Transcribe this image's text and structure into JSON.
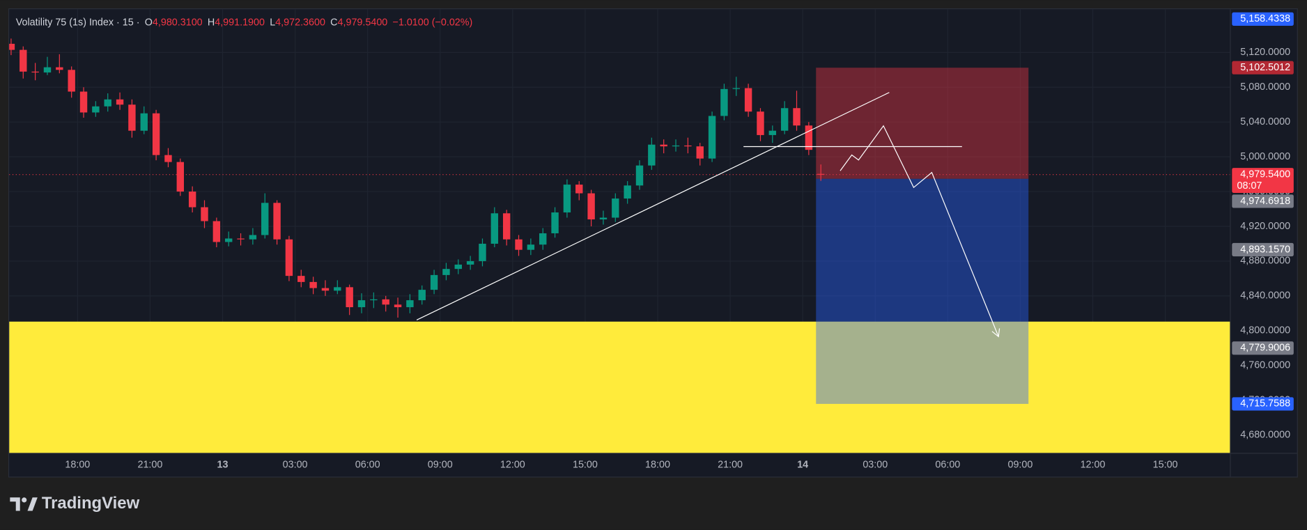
{
  "chart_data": {
    "type": "candlestick",
    "header": {
      "symbol": "Volatility 75 (1s) Index · 15 ·",
      "open_key": "O",
      "open": "4,980.3100",
      "high_key": "H",
      "high": "4,991.1900",
      "low_key": "L",
      "low": "4,972.3600",
      "close_key": "C",
      "close": "4,979.5400",
      "change": "−1.0100 (−0.02%)"
    },
    "up_color": "#089981",
    "down_color": "#f23645",
    "x": [
      15.25,
      15.75,
      16.25,
      16.75,
      17.25,
      17.75,
      18.25,
      18.75,
      19.25,
      19.75,
      20.25,
      20.75,
      21.25,
      21.75,
      22.25,
      22.75,
      23.25,
      23.75,
      24.25,
      24.75,
      25.25,
      25.75,
      26.25,
      26.75,
      27.25,
      27.75,
      28.25,
      28.75,
      29.25,
      29.75,
      30.25,
      30.75,
      31.25,
      31.75,
      32.25,
      32.75,
      33.25,
      33.75,
      34.25,
      34.75,
      35.25,
      35.75,
      36.25,
      36.75,
      37.25,
      37.75,
      38.25,
      38.75,
      39.25,
      39.75,
      40.25,
      40.75,
      41.25,
      41.75,
      42.25,
      42.75,
      43.25,
      43.75,
      44.25,
      44.75,
      45.25,
      45.75,
      46.25,
      46.75,
      47.25,
      47.75,
      48.25,
      48.75
    ],
    "candles": [
      [
        5130,
        5136,
        5117,
        5123
      ],
      [
        5123,
        5127,
        5090,
        5098
      ],
      [
        5098,
        5108,
        5088,
        5097
      ],
      [
        5097,
        5115,
        5094,
        5103
      ],
      [
        5103,
        5118,
        5096,
        5100
      ],
      [
        5100,
        5104,
        5068,
        5075
      ],
      [
        5075,
        5080,
        5045,
        5051
      ],
      [
        5051,
        5064,
        5046,
        5058
      ],
      [
        5058,
        5073,
        5052,
        5066
      ],
      [
        5066,
        5074,
        5054,
        5060
      ],
      [
        5060,
        5066,
        5022,
        5030
      ],
      [
        5030,
        5058,
        5026,
        5050
      ],
      [
        5050,
        5054,
        4996,
        5002
      ],
      [
        5002,
        5010,
        4988,
        4994
      ],
      [
        4994,
        4998,
        4955,
        4960
      ],
      [
        4960,
        4966,
        4936,
        4942
      ],
      [
        4942,
        4950,
        4918,
        4926
      ],
      [
        4926,
        4930,
        4896,
        4902
      ],
      [
        4902,
        4914,
        4897,
        4906
      ],
      [
        4906,
        4912,
        4898,
        4905
      ],
      [
        4905,
        4918,
        4899,
        4910
      ],
      [
        4910,
        4958,
        4906,
        4947
      ],
      [
        4947,
        4950,
        4899,
        4905
      ],
      [
        4905,
        4909,
        4857,
        4863
      ],
      [
        4863,
        4870,
        4850,
        4856
      ],
      [
        4856,
        4862,
        4842,
        4849
      ],
      [
        4849,
        4858,
        4840,
        4846
      ],
      [
        4846,
        4858,
        4842,
        4850
      ],
      [
        4850,
        4853,
        4818,
        4827
      ],
      [
        4827,
        4843,
        4820,
        4835
      ],
      [
        4835,
        4844,
        4826,
        4836
      ],
      [
        4836,
        4840,
        4822,
        4830
      ],
      [
        4830,
        4838,
        4815,
        4827
      ],
      [
        4827,
        4842,
        4820,
        4835
      ],
      [
        4835,
        4852,
        4830,
        4847
      ],
      [
        4847,
        4870,
        4842,
        4864
      ],
      [
        4864,
        4878,
        4858,
        4871
      ],
      [
        4871,
        4882,
        4865,
        4876
      ],
      [
        4876,
        4886,
        4870,
        4880
      ],
      [
        4880,
        4906,
        4874,
        4900
      ],
      [
        4900,
        4942,
        4896,
        4935
      ],
      [
        4935,
        4939,
        4898,
        4905
      ],
      [
        4905,
        4910,
        4886,
        4893
      ],
      [
        4893,
        4906,
        4887,
        4899
      ],
      [
        4899,
        4918,
        4893,
        4912
      ],
      [
        4912,
        4942,
        4907,
        4936
      ],
      [
        4936,
        4974,
        4930,
        4968
      ],
      [
        4968,
        4972,
        4950,
        4958
      ],
      [
        4958,
        4962,
        4920,
        4928
      ],
      [
        4928,
        4938,
        4922,
        4930
      ],
      [
        4930,
        4958,
        4925,
        4952
      ],
      [
        4952,
        4972,
        4946,
        4967
      ],
      [
        4967,
        4996,
        4962,
        4990
      ],
      [
        4990,
        5022,
        4985,
        5014
      ],
      [
        5014,
        5020,
        5004,
        5012
      ],
      [
        5012,
        5020,
        5006,
        5013
      ],
      [
        5013,
        5022,
        5004,
        5012
      ],
      [
        5012,
        5016,
        4990,
        4998
      ],
      [
        4998,
        5052,
        4994,
        5047
      ],
      [
        5047,
        5084,
        5042,
        5078
      ],
      [
        5078,
        5092,
        5070,
        5079
      ],
      [
        5079,
        5084,
        5046,
        5052
      ],
      [
        5052,
        5056,
        5018,
        5025
      ],
      [
        5025,
        5036,
        5016,
        5030
      ],
      [
        5030,
        5064,
        5026,
        5056
      ],
      [
        5056,
        5076,
        5030,
        5036
      ],
      [
        5036,
        5040,
        5002,
        5008
      ],
      [
        4980.31,
        4991.19,
        4972.36,
        4979.54
      ]
    ],
    "xlim": [
      15.17,
      65.69
    ],
    "ylim": [
      4658.9,
      5169.8
    ],
    "xticks": [
      {
        "value": 18,
        "label": "18:00"
      },
      {
        "value": 21,
        "label": "21:00"
      },
      {
        "value": 24,
        "label": "13"
      },
      {
        "value": 27,
        "label": "03:00"
      },
      {
        "value": 30,
        "label": "06:00"
      },
      {
        "value": 33,
        "label": "09:00"
      },
      {
        "value": 36,
        "label": "12:00"
      },
      {
        "value": 39,
        "label": "15:00"
      },
      {
        "value": 42,
        "label": "18:00"
      },
      {
        "value": 45,
        "label": "21:00"
      },
      {
        "value": 48,
        "label": "14"
      },
      {
        "value": 51,
        "label": "03:00"
      },
      {
        "value": 54,
        "label": "06:00"
      },
      {
        "value": 57,
        "label": "09:00"
      },
      {
        "value": 60,
        "label": "12:00"
      },
      {
        "value": 63,
        "label": "15:00"
      }
    ],
    "yticks": [
      {
        "value": 4680,
        "label": "4,680.0000"
      },
      {
        "value": 4720,
        "label": "4,720.0000"
      },
      {
        "value": 4760,
        "label": "4,760.0000"
      },
      {
        "value": 4800,
        "label": "4,800.0000"
      },
      {
        "value": 4840,
        "label": "4,840.0000"
      },
      {
        "value": 4880,
        "label": "4,880.0000"
      },
      {
        "value": 4920,
        "label": "4,920.0000"
      },
      {
        "value": 4960,
        "label": "4,960.0000"
      },
      {
        "value": 5000,
        "label": "5,000.0000"
      },
      {
        "value": 5040,
        "label": "5,040.0000"
      },
      {
        "value": 5080,
        "label": "5,080.0000"
      },
      {
        "value": 5120,
        "label": "5,120.0000"
      }
    ],
    "current_price": {
      "value": 4979.54,
      "color": "#f23645",
      "countdown": "08:07"
    },
    "price_labels": [
      {
        "value": 5158.4338,
        "label": "5,158.4338",
        "color": "#2962ff"
      },
      {
        "value": 5102.5012,
        "label": "5,102.5012",
        "color": "#b22833"
      },
      {
        "value": 4979.54,
        "label": "4,979.5400",
        "color": "#f23645"
      },
      {
        "value": 4974.6918,
        "label": "4,974.6918",
        "color": "#787b86"
      },
      {
        "value": 4893.157,
        "label": "4,893.1570",
        "color": "#787b86"
      },
      {
        "value": 4779.9006,
        "label": "4,779.9006",
        "color": "#787b86"
      },
      {
        "value": 4715.7588,
        "label": "4,715.7588",
        "color": "#2962ff"
      }
    ],
    "zone": {
      "top": 4810.4,
      "color": "#ffeb3b"
    },
    "position": {
      "entry": 4974.6918,
      "stop": 5102.5012,
      "target": 4715.7588,
      "x_range": [
        48.55,
        57.34
      ]
    },
    "trend_lines": [
      {
        "x": [
          32.03,
          51.58
        ],
        "y": [
          4812.3,
          5074
        ]
      },
      {
        "x": [
          45.55,
          54.59
        ],
        "y": [
          5011.7,
          5011.7
        ]
      }
    ],
    "projection": {
      "x": [
        49.55,
        50.03,
        50.31,
        51.34,
        52.59,
        53.34,
        56.1
      ],
      "y": [
        4983.9,
        5002.1,
        4996.3,
        5035.6,
        4964.7,
        4981.96,
        4793.1
      ]
    },
    "brand": "TradingView"
  }
}
